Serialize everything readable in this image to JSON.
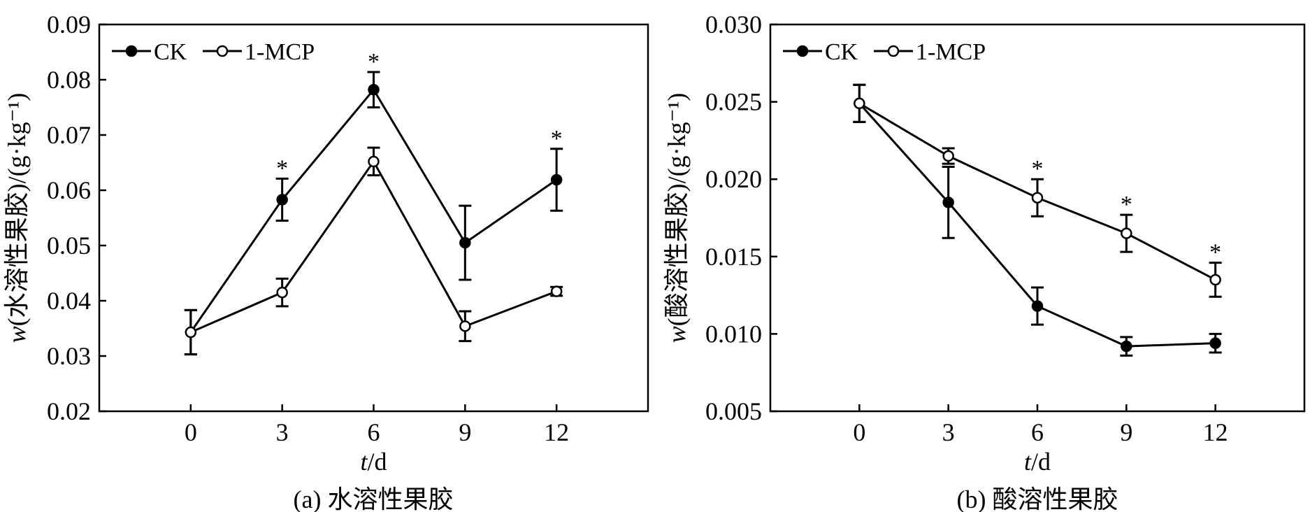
{
  "chart_data": [
    {
      "type": "line",
      "caption": "(a) 水溶性果胶",
      "xlabel_italic": "t",
      "xlabel_rest": "/d",
      "ylabel_italic": "w",
      "ylabel_rest": "(水溶性果胶)/(g·kg⁻¹)",
      "x": [
        0,
        3,
        6,
        9,
        12
      ],
      "xlim": [
        -3,
        15
      ],
      "ylim": [
        0.02,
        0.09
      ],
      "yticks": [
        "0.02",
        "0.03",
        "0.04",
        "0.05",
        "0.06",
        "0.07",
        "0.08",
        "0.09"
      ],
      "yticks_values": [
        0.02,
        0.03,
        0.04,
        0.05,
        0.06,
        0.07,
        0.08,
        0.09
      ],
      "legend": "top-left",
      "grid": false,
      "series": [
        {
          "name": "CK",
          "marker": "filled",
          "values": [
            0.0343,
            0.0583,
            0.0782,
            0.0505,
            0.0619
          ],
          "errors": [
            0.004,
            0.0038,
            0.0032,
            0.0067,
            0.0056
          ]
        },
        {
          "name": "1-MCP",
          "marker": "open",
          "values": [
            0.0343,
            0.0415,
            0.0652,
            0.0354,
            0.0417
          ],
          "errors": [
            0.004,
            0.0025,
            0.0025,
            0.0027,
            0.0008
          ]
        }
      ],
      "significance": [
        {
          "x": 3,
          "label": "*"
        },
        {
          "x": 6,
          "label": "*"
        },
        {
          "x": 12,
          "label": "*"
        }
      ]
    },
    {
      "type": "line",
      "caption": "(b) 酸溶性果胶",
      "xlabel_italic": "t",
      "xlabel_rest": "/d",
      "ylabel_italic": "w",
      "ylabel_rest": "(酸溶性果胶)/(g·kg⁻¹)",
      "x": [
        0,
        3,
        6,
        9,
        12
      ],
      "xlim": [
        -3,
        15
      ],
      "ylim": [
        0.005,
        0.03
      ],
      "yticks": [
        "0.005",
        "0.010",
        "0.015",
        "0.020",
        "0.025",
        "0.030"
      ],
      "yticks_values": [
        0.005,
        0.01,
        0.015,
        0.02,
        0.025,
        0.03
      ],
      "legend": "top-left",
      "grid": false,
      "series": [
        {
          "name": "CK",
          "marker": "filled",
          "values": [
            0.0249,
            0.0185,
            0.0118,
            0.0092,
            0.0094
          ],
          "errors": [
            0.0012,
            0.0023,
            0.0012,
            0.0006,
            0.0006
          ]
        },
        {
          "name": "1-MCP",
          "marker": "open",
          "values": [
            0.0249,
            0.0215,
            0.0188,
            0.0165,
            0.0135
          ],
          "errors": [
            0.0012,
            0.0005,
            0.0012,
            0.0012,
            0.0011
          ]
        }
      ],
      "significance": [
        {
          "x": 6,
          "label": "*"
        },
        {
          "x": 9,
          "label": "*"
        },
        {
          "x": 12,
          "label": "*"
        }
      ]
    }
  ]
}
